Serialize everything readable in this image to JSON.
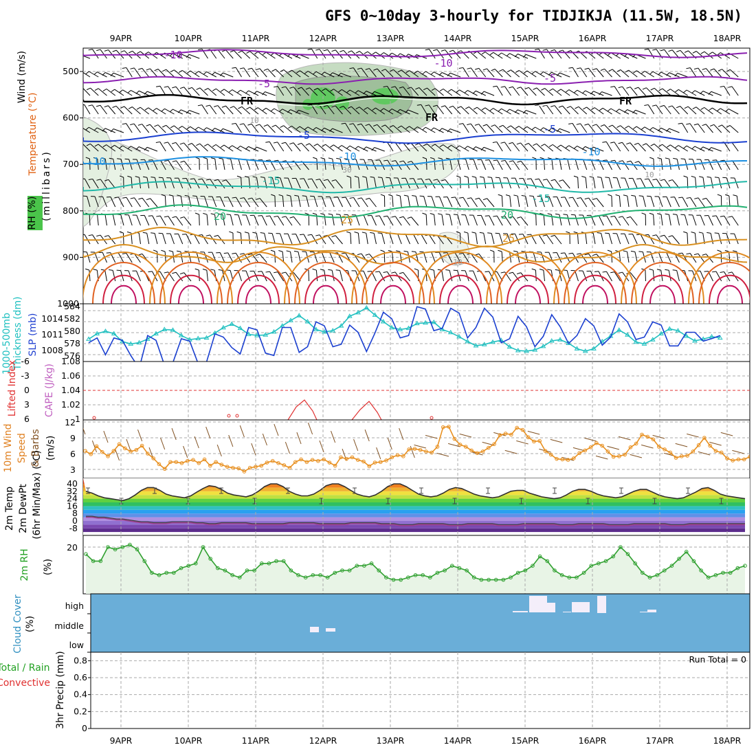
{
  "title": "GFS 0~10day 3-hourly for TIDJIKJA (11.5W, 18.5N)",
  "date_labels": [
    "9APR",
    "10APR",
    "11APR",
    "12APR",
    "13APR",
    "14APR",
    "15APR",
    "16APR",
    "17APR",
    "18APR"
  ],
  "panels": {
    "upper": {
      "labels": [
        {
          "text": "Wind (m/s)",
          "color": "#000000"
        },
        {
          "text": "Temperature (°C)",
          "color": "#e06010"
        },
        {
          "text": "(millibars)",
          "color": "#000000"
        },
        {
          "text": "RH (%)",
          "color": "#000000"
        }
      ],
      "y_ticks": [
        "500",
        "600",
        "700",
        "800",
        "900",
        "1000"
      ],
      "contour_labels": [
        "-10",
        "-10",
        "-5",
        "-5",
        "FR",
        "FR",
        "FR",
        "-5",
        "-5",
        "-10",
        "-10",
        "-10",
        "-15",
        "-15",
        "20",
        "20",
        "25",
        "25",
        "10",
        "30",
        "10",
        "10"
      ]
    },
    "thickness": {
      "labels": [
        {
          "text": "1000-500mb",
          "color": "#20c0c0"
        },
        {
          "text": "Thickness (dm)",
          "color": "#20c0c0"
        },
        {
          "text": "SLP (mb)",
          "color": "#2040d0"
        }
      ],
      "left_ticks": [
        "584",
        "582",
        "580",
        "578",
        "576"
      ],
      "right_ticks": [
        "1014",
        "1011",
        "1008"
      ]
    },
    "cape": {
      "labels": [
        {
          "text": "Lifted Index",
          "color": "#e03030"
        },
        {
          "text": "CAPE (J/kg)",
          "color": "#c060c0"
        }
      ],
      "left_ticks": [
        "-6",
        "-3",
        "0",
        "3",
        "6"
      ],
      "right_ticks": [
        "1.08",
        "1.06",
        "1.04",
        "1.02",
        "1"
      ]
    },
    "wind10m": {
      "labels": [
        {
          "text": "10m Wind",
          "color": "#e08020"
        },
        {
          "text": "Speed",
          "color": "#e08020"
        },
        {
          "text": "& Barbs",
          "color": "#805020"
        },
        {
          "text": "(m/s)",
          "color": "#000000"
        }
      ],
      "y_ticks": [
        "12",
        "9",
        "6",
        "3"
      ]
    },
    "temp2m": {
      "labels": [
        {
          "text": "2m Temp",
          "color": "#000000"
        },
        {
          "text": "2m DewPt",
          "color": "#000000"
        },
        {
          "text": "(6hr Min/Max) (°C)",
          "color": "#000000"
        }
      ],
      "y_ticks": [
        "40",
        "32",
        "24",
        "16",
        "8",
        "0",
        "-8"
      ]
    },
    "rh2m": {
      "labels": [
        {
          "text": "2m RH",
          "color": "#20a020"
        },
        {
          "text": "(%)",
          "color": "#000000"
        }
      ],
      "y_ticks": [
        "20"
      ]
    },
    "cloud": {
      "labels": [
        {
          "text": "Cloud Cover",
          "color": "#3090c0"
        },
        {
          "text": "(%)",
          "color": "#000000"
        }
      ],
      "y_ticks": [
        "high",
        "middle",
        "low"
      ]
    },
    "precip": {
      "labels": [
        {
          "text": "Total / Rain",
          "color": "#20a020"
        },
        {
          "text": "Convective",
          "color": "#e03030"
        },
        {
          "text": "3hr Precip (mm)",
          "color": "#000000"
        }
      ],
      "y_ticks": [
        "0.8",
        "0.6",
        "0.4",
        "0.2",
        "0"
      ],
      "run_total": "Run Total = 0"
    }
  },
  "colors": {
    "slp": "#1a3fd0",
    "thickness": "#20c0c0",
    "wind_speed": "#e89020",
    "rh": "#30a030",
    "rh_fill": "#e8f4e6",
    "cloud_bg": "#6aaed8",
    "cape_line": "#e03030"
  },
  "chart_data": [
    {
      "type": "line",
      "title": "SLP (mb)",
      "x_labels": [
        "9APR",
        "10APR",
        "11APR",
        "12APR",
        "13APR",
        "14APR",
        "15APR",
        "16APR",
        "17APR",
        "18APR"
      ],
      "series": [
        {
          "name": "SLP (mb)",
          "values": [
            1010,
            1010.6,
            1008.5,
            1010.6,
            1010.3,
            1008.4,
            1006.8,
            1010.9,
            1010.3,
            1007.2,
            1007.5,
            1010.5,
            1010.2,
            1007.4,
            1007.6,
            1011.1,
            1010.7,
            1009.4,
            1008.6,
            1011.9,
            1011.6,
            1008.7,
            1008.4,
            1011.9,
            1011.9,
            1008.8,
            1009.5,
            1012.6,
            1012.1,
            1009.5,
            1009.8,
            1012.2,
            1011.3,
            1008.9,
            1011.2,
            1013.8,
            1013.0,
            1010.6,
            1010.9,
            1014.5,
            1014.2,
            1011.5,
            1011.8,
            1014.3,
            1013.7,
            1010.6,
            1011.9,
            1014.3,
            1013.2,
            1010.0,
            1010.5,
            1013.3,
            1012.0,
            1009.5,
            1010.8,
            1013.5,
            1012.0,
            1009.9,
            1010.9,
            1013.0,
            1012.1,
            1009.7,
            1010.7,
            1013.6,
            1012.6,
            1010.4,
            1010.7,
            1012.6,
            1012.2,
            1009.6,
            1009.6,
            1011.3,
            1011.3,
            1010.2,
            1010.5,
            1010.9
          ]
        }
      ]
    },
    {
      "type": "line",
      "title": "1000-500mb Thickness (dm)",
      "x_labels": [
        "9APR",
        "10APR",
        "11APR",
        "12APR",
        "13APR",
        "14APR",
        "15APR",
        "16APR",
        "17APR",
        "18APR"
      ],
      "series": [
        {
          "name": "1000-500mb Thickness (dm)",
          "values": [
            578.7,
            579.6,
            580.0,
            579.6,
            578.3,
            577.9,
            578.1,
            578.7,
            579.6,
            580.3,
            580.2,
            579.3,
            578.6,
            578.8,
            578.9,
            579.7,
            580.6,
            581.2,
            580.5,
            579.5,
            579.3,
            579.4,
            579.9,
            580.9,
            581.8,
            582.6,
            581.6,
            580.3,
            579.9,
            580.1,
            580.9,
            582.5,
            583.1,
            583.9,
            582.7,
            581.6,
            580.6,
            580.3,
            580.5,
            581.3,
            581.4,
            581.5,
            580.3,
            579.8,
            579.1,
            578.3,
            577.6,
            577.8,
            578.2,
            578.5,
            577.4,
            576.8,
            576.7,
            576.9,
            577.5,
            578.4,
            578.6,
            578.0,
            577.1,
            576.7,
            577.1,
            578.3,
            579.2,
            580.2,
            579.4,
            578.2,
            577.9,
            578.6,
            579.6,
            580.4,
            580.1,
            579.2,
            578.4,
            578.7,
            579.1,
            578.9
          ]
        }
      ]
    },
    {
      "type": "line",
      "title": "10m Wind Speed (m/s)",
      "x_labels": [
        "9APR",
        "10APR",
        "11APR",
        "12APR",
        "13APR",
        "14APR",
        "15APR",
        "16APR",
        "17APR",
        "18APR"
      ],
      "series": [
        {
          "name": "10m Wind Speed (m/s)",
          "values": [
            6.5,
            5.9,
            7.4,
            6.3,
            5.5,
            6.5,
            7.8,
            7.0,
            6.4,
            6.7,
            7.5,
            6.0,
            5.1,
            4.0,
            3.1,
            4.4,
            4.4,
            4.2,
            4.6,
            4.8,
            4.2,
            4.9,
            3.7,
            4.4,
            3.9,
            3.5,
            3.3,
            3.2,
            2.6,
            3.3,
            3.5,
            3.7,
            4.3,
            4.6,
            4.2,
            3.8,
            3.3,
            4.4,
            4.9,
            4.4,
            4.8,
            4.6,
            4.9,
            4.3,
            3.7,
            5.3,
            5.0,
            5.3,
            4.8,
            4.5,
            3.6,
            4.3,
            4.4,
            4.7,
            5.3,
            5.7,
            5.5,
            6.8,
            6.9,
            6.7,
            6.4,
            6.2,
            7.3,
            11.0,
            11.1,
            8.8,
            7.7,
            7.3,
            6.6,
            6.1,
            6.4,
            7.1,
            7.8,
            9.5,
            9.8,
            9.6,
            10.9,
            10.5,
            9.1,
            8.3,
            8.4,
            6.5,
            5.8,
            5.0,
            4.9,
            4.8,
            5.1,
            6.1,
            6.6,
            7.2,
            8.0,
            7.5,
            6.4,
            5.4,
            5.5,
            5.8,
            7.2,
            7.9,
            9.6,
            9.2,
            8.7,
            7.3,
            6.8,
            6.2,
            5.2,
            5.5,
            5.6,
            6.4,
            7.6,
            9.0,
            7.5,
            6.5,
            6.2,
            5.1,
            4.7,
            4.9,
            4.9,
            5.4
          ]
        }
      ]
    },
    {
      "type": "area",
      "title": "2m Temp (°C)",
      "x_labels": [
        "9APR",
        "10APR",
        "11APR",
        "12APR",
        "13APR",
        "14APR",
        "15APR",
        "16APR",
        "17APR",
        "18APR"
      ],
      "series": [
        {
          "name": "2m Temp (°C)",
          "values": [
            32,
            30,
            27,
            25,
            24,
            23,
            22,
            24,
            28,
            33,
            36,
            36,
            33,
            29,
            27,
            26,
            25,
            27,
            31,
            35,
            38,
            37,
            34,
            30,
            28,
            27,
            26,
            28,
            32,
            37,
            40,
            40,
            37,
            32,
            29,
            27,
            27,
            29,
            33,
            38,
            40,
            40,
            37,
            33,
            29,
            27,
            26,
            28,
            32,
            37,
            40,
            40,
            37,
            33,
            29,
            27,
            26,
            27,
            30,
            34,
            36,
            35,
            32,
            29,
            27,
            26,
            25,
            26,
            29,
            32,
            33,
            33,
            30,
            28,
            26,
            25,
            24,
            25,
            28,
            32,
            34,
            34,
            32,
            29,
            27,
            26,
            25,
            26,
            29,
            32,
            34,
            34,
            31,
            28,
            26,
            25,
            24,
            25,
            28,
            31,
            35,
            36,
            33,
            29,
            27,
            26,
            25,
            24
          ]
        },
        {
          "name": "2m DewPt (°C)",
          "values": [
            4,
            4,
            3,
            3,
            2,
            1,
            1,
            0,
            -1,
            -2,
            -2,
            -3,
            -3,
            -3,
            -2,
            -2,
            -2,
            -2,
            -3,
            -3,
            -4,
            -4,
            -3,
            -3,
            -3,
            -3,
            -3,
            -4,
            -4,
            -4,
            -4,
            -4,
            -4,
            -3,
            -3,
            -3,
            -3,
            -3,
            -4,
            -4,
            -4,
            -4,
            -4,
            -3,
            -3,
            -3,
            -3,
            -3,
            -4,
            -4,
            -4,
            -5,
            -5,
            -5,
            -4,
            -4,
            -4,
            -4,
            -4,
            -5,
            -5,
            -5,
            -4,
            -4,
            -4,
            -4,
            -4,
            -5,
            -5,
            -5,
            -5,
            -4,
            -4,
            -4,
            -4,
            -4,
            -4,
            -5,
            -5,
            -5,
            -4,
            -4,
            -4,
            -4,
            -4,
            -5,
            -5,
            -5,
            -5,
            -4,
            -4,
            -4,
            -4,
            -4,
            -4,
            -5,
            -5,
            -5,
            -4,
            -4,
            -4,
            -4,
            -4,
            -4,
            -4,
            -4,
            -4,
            -4
          ]
        }
      ]
    },
    {
      "type": "area",
      "title": "2m RH (%)",
      "x_labels": [
        "9APR",
        "10APR",
        "11APR",
        "12APR",
        "13APR",
        "14APR",
        "15APR",
        "16APR",
        "17APR",
        "18APR"
      ],
      "series": [
        {
          "name": "2m RH (%)",
          "values": [
            17,
            14,
            14,
            20,
            19,
            20,
            21,
            19,
            14,
            9,
            8,
            9,
            9,
            11,
            12,
            13,
            20,
            15,
            11,
            10,
            8,
            7,
            10,
            10,
            13,
            13,
            14,
            14,
            10,
            8,
            7,
            8,
            8,
            7,
            9,
            10,
            10,
            12,
            12,
            13,
            10,
            7,
            6,
            6,
            7,
            8,
            8,
            7,
            9,
            10,
            12,
            11,
            10,
            7,
            6,
            6,
            6,
            6,
            7,
            9,
            10,
            12,
            16,
            14,
            10,
            8,
            7,
            7,
            9,
            12,
            13,
            14,
            16,
            20,
            17,
            13,
            9,
            7,
            8,
            10,
            12,
            15,
            18,
            14,
            10,
            7,
            8,
            9,
            9,
            11,
            12
          ]
        }
      ]
    },
    {
      "type": "bar",
      "title": "Cloud Cover (%)",
      "y_categories": [
        "high",
        "middle",
        "low"
      ],
      "series": [
        {
          "name": "middle",
          "points": [
            {
              "date": "11APR 21Z",
              "value": 25
            },
            {
              "date": "12APR 03Z",
              "value": 15
            }
          ]
        },
        {
          "name": "high",
          "points": [
            {
              "date": "14APR 21Z",
              "value": 15
            },
            {
              "date": "15APR 03Z",
              "value": 80
            },
            {
              "date": "15APR 06Z",
              "value": 45
            },
            {
              "date": "15APR 12Z",
              "value": 15
            },
            {
              "date": "15APR 18Z",
              "value": 55
            },
            {
              "date": "16APR 06Z",
              "value": 90
            },
            {
              "date": "17APR 12Z",
              "value": 10
            }
          ]
        }
      ]
    },
    {
      "type": "bar",
      "title": "3hr Precip (mm)",
      "ylim": [
        0,
        0.9
      ],
      "series": [
        {
          "name": "Total / Rain",
          "values": []
        }
      ]
    }
  ]
}
